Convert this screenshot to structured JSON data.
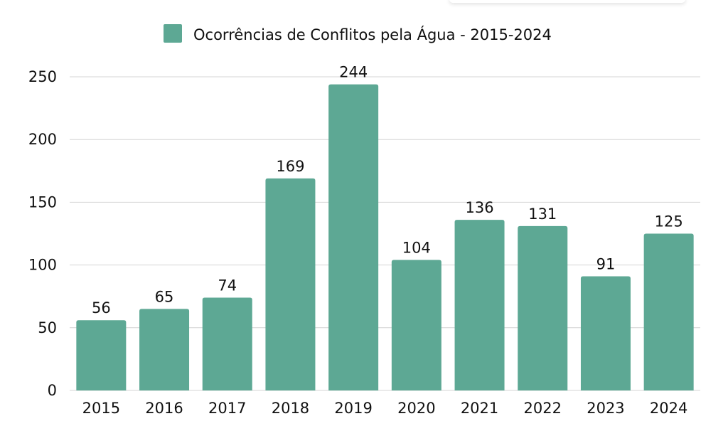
{
  "chart_data": {
    "type": "bar",
    "title": "",
    "legend": {
      "label": "Ocorrências de Conflitos pela Água - 2015-2024",
      "position": "top-center"
    },
    "categories": [
      "2015",
      "2016",
      "2017",
      "2018",
      "2019",
      "2020",
      "2021",
      "2022",
      "2023",
      "2024"
    ],
    "series": [
      {
        "name": "Ocorrências de Conflitos pela Água - 2015-2024",
        "values": [
          56,
          65,
          74,
          169,
          244,
          104,
          136,
          131,
          91,
          125
        ]
      }
    ],
    "value_labels": [
      "56",
      "65",
      "74",
      "169",
      "244",
      "104",
      "136",
      "131",
      "91",
      "125"
    ],
    "xlabel": "",
    "ylabel": "",
    "ylim": [
      0,
      250
    ],
    "yticks": [
      0,
      50,
      100,
      150,
      200,
      250
    ],
    "ytick_labels": [
      "0",
      "50",
      "100",
      "150",
      "200",
      "250"
    ],
    "grid": true,
    "colors": {
      "bar": "#5da894",
      "grid": "#d4d4d4",
      "text": "#111111"
    }
  }
}
